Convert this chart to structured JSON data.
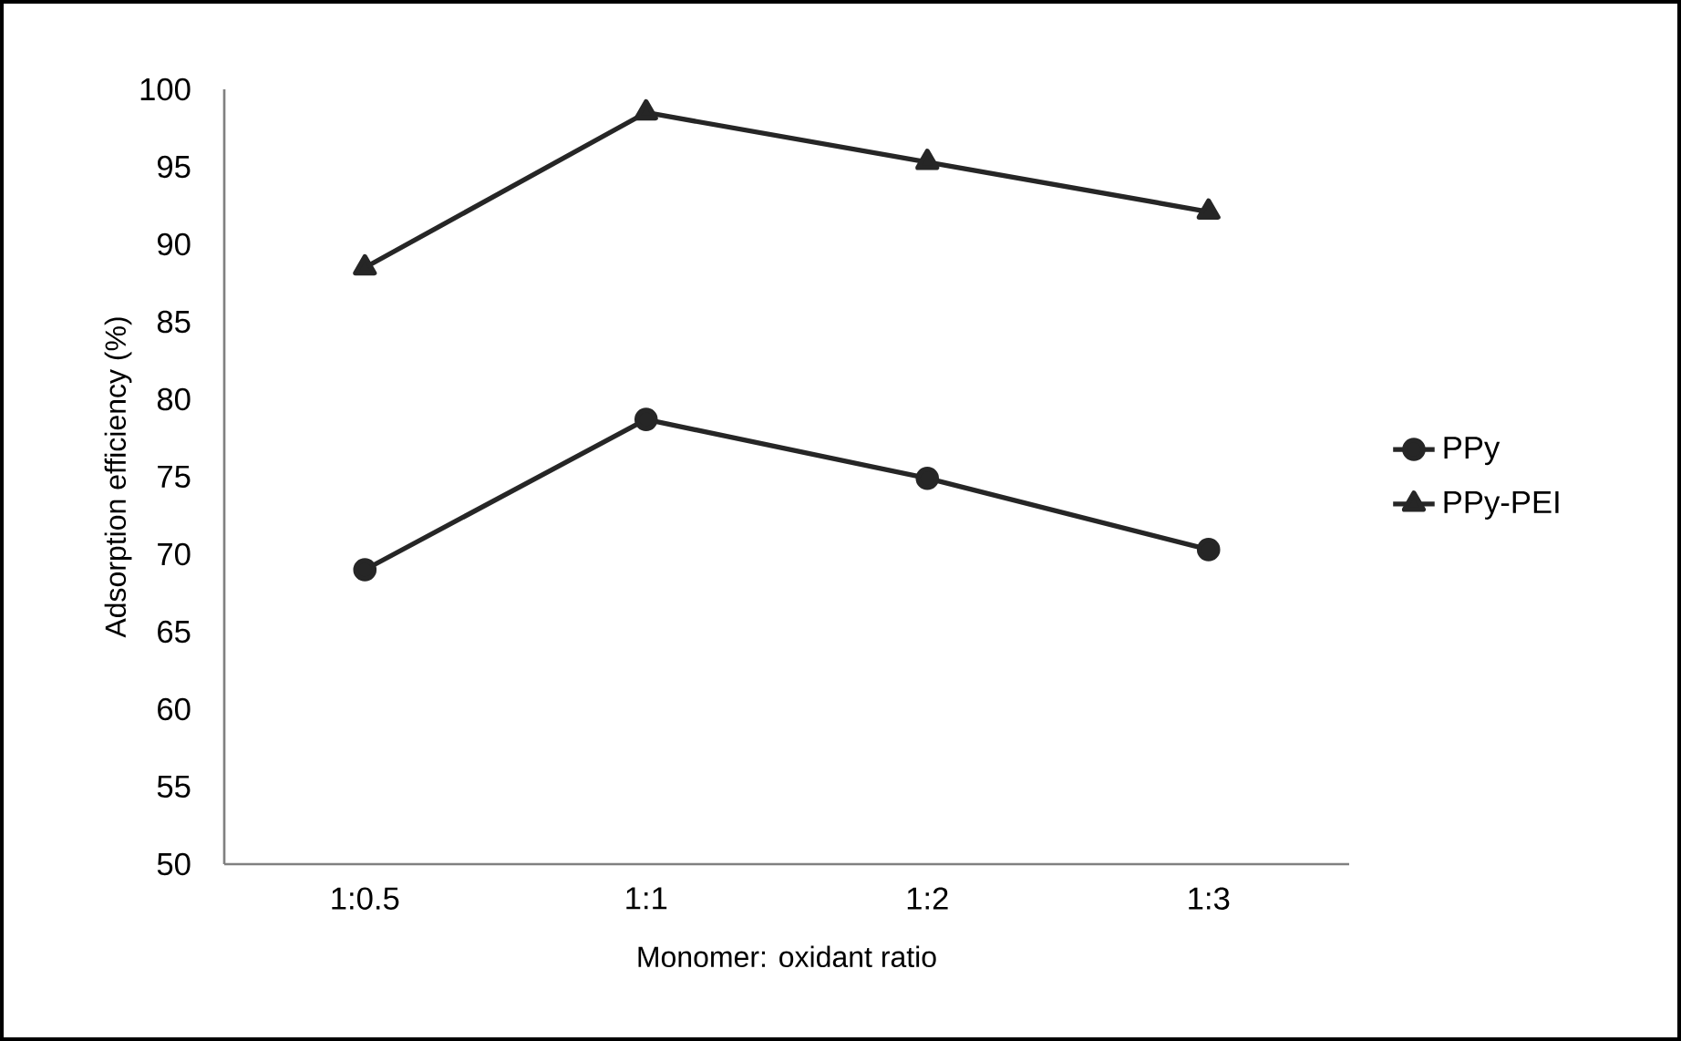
{
  "chart_data": {
    "type": "line",
    "xlabel": "Monomer: oxidant ratio",
    "ylabel": "Adsorption efficiency (%)",
    "categories": [
      "1:0.5",
      "1:1",
      "1:2",
      "1:3"
    ],
    "series": [
      {
        "name": "PPy",
        "color": "#262626",
        "marker": "circle",
        "values": [
          69.0,
          78.7,
          74.9,
          70.3
        ]
      },
      {
        "name": "PPy-PEI",
        "color": "#262626",
        "marker": "triangle",
        "values": [
          88.5,
          98.5,
          95.3,
          92.1
        ]
      }
    ],
    "ylim": [
      50,
      100
    ],
    "yticks": [
      50,
      55,
      60,
      65,
      70,
      75,
      80,
      85,
      90,
      95,
      100
    ],
    "grid": false,
    "legend": "right",
    "line_style": "solid"
  }
}
